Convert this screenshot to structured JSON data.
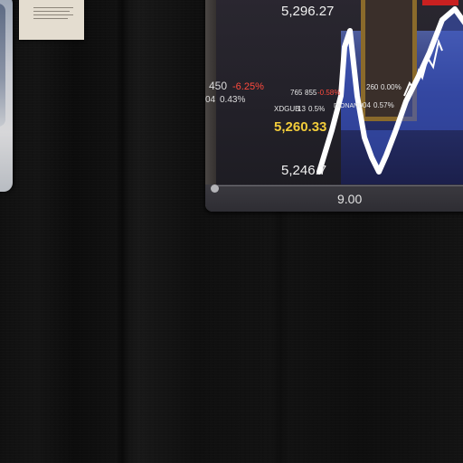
{
  "scene": {
    "background_color": "#0d0d0d",
    "objects": {
      "left_card": "partially visible photo card",
      "note": "paper note with printed lines"
    }
  },
  "ticker": {
    "price_top": "5,296.27",
    "left_value": "450",
    "left_change": "-6.25%",
    "left_sub_code": "04",
    "left_sub_change": "0.43%",
    "mid_code": "765",
    "mid_value": "855",
    "mid_change": "-0.58%",
    "mid_sub_code": "XDGUB",
    "mid_sub_value": "13",
    "mid_sub_change": "0.5%",
    "price_highlight": "5,260.33",
    "right_value": "260",
    "right_change": "0.00%",
    "right_code": "DIONANU",
    "right_sub_value": "04",
    "right_sub_change": "0.57%",
    "price_low": "5,246.7",
    "axis_label": "9.00"
  },
  "colors": {
    "up_text": "#f1f1f1",
    "down_text": "#ff4a3d",
    "highlight": "#f2cc3a",
    "chart_line": "#ffffff",
    "chart_fill": "#3c57c8"
  }
}
